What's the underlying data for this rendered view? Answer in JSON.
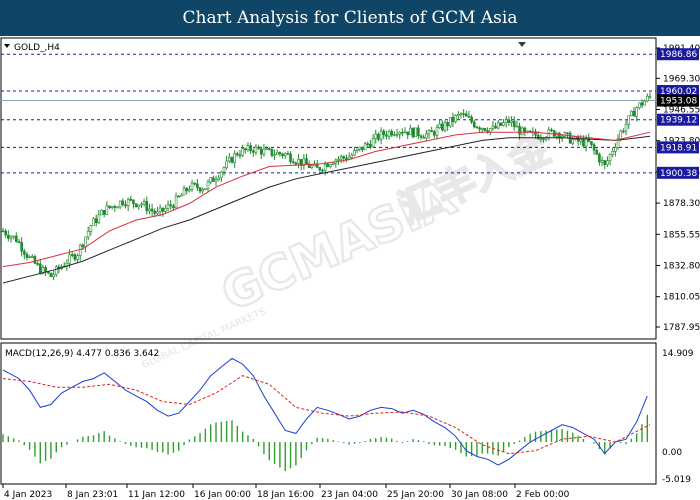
{
  "header": {
    "title": "Chart Analysis for Clients of GCM Asia"
  },
  "symbol": {
    "label": "GOLD_,H4"
  },
  "macd": {
    "label": "MACD(12,26,9) 4.477 0.836 3.642",
    "axis_top": "14.909",
    "axis_zero": "0.00",
    "axis_bottom": "-5.019"
  },
  "watermark": {
    "brand": "GCMASIA",
    "chinese": "汇丰入金",
    "tagline": "GLOBAL CAPITAL MARKETS"
  },
  "colors": {
    "header_bg": "#0f4667",
    "candle": "#1f8a2f",
    "ma_fast": "#d9313d",
    "ma_slow": "#222222",
    "level": "#1a1aa0",
    "current_price": "#8aa4b8",
    "macd_line": "#1a3fd6",
    "signal_line": "#e0201a",
    "histogram": "#2e9e2e"
  },
  "chart_data": {
    "type": "candlestick",
    "symbol": "GOLD_",
    "timeframe": "H4",
    "ylim": [
      1787.95,
      1991.4
    ],
    "y_ticks": [
      1991.4,
      1969.3,
      1946.55,
      1923.8,
      1901.05,
      1878.3,
      1855.55,
      1832.8,
      1810.05,
      1787.95
    ],
    "x_ticks": [
      "4 Jan 2023",
      "8 Jan 23:01",
      "11 Jan 12:00",
      "16 Jan 00:00",
      "18 Jan 16:00",
      "23 Jan 04:00",
      "25 Jan 20:00",
      "30 Jan 08:00",
      "2 Feb 00:00"
    ],
    "levels": [
      {
        "price": 1986.86,
        "label": "1986.86",
        "style": "dashed"
      },
      {
        "price": 1960.02,
        "label": "1960.02",
        "style": "dashed"
      },
      {
        "price": 1939.12,
        "label": "1939.12",
        "style": "dashed"
      },
      {
        "price": 1918.91,
        "label": "1918.91",
        "style": "dashed"
      },
      {
        "price": 1900.38,
        "label": "1900.38",
        "style": "dashed"
      }
    ],
    "current_price": {
      "price": 1953.08,
      "label": "1953.08"
    },
    "close_path": [
      [
        0,
        1858
      ],
      [
        5,
        1852
      ],
      [
        10,
        1838
      ],
      [
        14,
        1830
      ],
      [
        18,
        1825
      ],
      [
        24,
        1836
      ],
      [
        28,
        1842
      ],
      [
        33,
        1862
      ],
      [
        38,
        1873
      ],
      [
        45,
        1880
      ],
      [
        52,
        1878
      ],
      [
        58,
        1870
      ],
      [
        64,
        1878
      ],
      [
        70,
        1890
      ],
      [
        76,
        1890
      ],
      [
        82,
        1902
      ],
      [
        88,
        1915
      ],
      [
        94,
        1918
      ],
      [
        100,
        1915
      ],
      [
        106,
        1914
      ],
      [
        112,
        1908
      ],
      [
        118,
        1903
      ],
      [
        124,
        1910
      ],
      [
        130,
        1912
      ],
      [
        136,
        1920
      ],
      [
        142,
        1928
      ],
      [
        148,
        1932
      ],
      [
        154,
        1930
      ],
      [
        160,
        1928
      ],
      [
        166,
        1935
      ],
      [
        172,
        1943
      ],
      [
        178,
        1935
      ],
      [
        184,
        1932
      ],
      [
        190,
        1938
      ],
      [
        196,
        1928
      ],
      [
        202,
        1928
      ],
      [
        208,
        1930
      ],
      [
        214,
        1924
      ],
      [
        220,
        1922
      ],
      [
        226,
        1905
      ],
      [
        232,
        1930
      ],
      [
        238,
        1948
      ],
      [
        243,
        1956
      ]
    ],
    "ma_fast": [
      [
        0,
        1832
      ],
      [
        10,
        1835
      ],
      [
        20,
        1840
      ],
      [
        30,
        1845
      ],
      [
        40,
        1858
      ],
      [
        50,
        1866
      ],
      [
        60,
        1870
      ],
      [
        70,
        1878
      ],
      [
        80,
        1890
      ],
      [
        90,
        1898
      ],
      [
        100,
        1905
      ],
      [
        110,
        1906
      ],
      [
        120,
        1907
      ],
      [
        130,
        1910
      ],
      [
        140,
        1916
      ],
      [
        150,
        1920
      ],
      [
        160,
        1924
      ],
      [
        170,
        1928
      ],
      [
        180,
        1930
      ],
      [
        190,
        1930
      ],
      [
        200,
        1930
      ],
      [
        210,
        1928
      ],
      [
        220,
        1926
      ],
      [
        230,
        1924
      ],
      [
        243,
        1930
      ]
    ],
    "ma_slow": [
      [
        0,
        1820
      ],
      [
        10,
        1825
      ],
      [
        20,
        1830
      ],
      [
        30,
        1836
      ],
      [
        40,
        1844
      ],
      [
        50,
        1852
      ],
      [
        60,
        1860
      ],
      [
        70,
        1866
      ],
      [
        80,
        1874
      ],
      [
        90,
        1882
      ],
      [
        100,
        1890
      ],
      [
        110,
        1896
      ],
      [
        120,
        1900
      ],
      [
        130,
        1904
      ],
      [
        140,
        1908
      ],
      [
        150,
        1912
      ],
      [
        160,
        1916
      ],
      [
        170,
        1920
      ],
      [
        180,
        1924
      ],
      [
        190,
        1926
      ],
      [
        200,
        1926
      ],
      [
        210,
        1926
      ],
      [
        220,
        1925
      ],
      [
        230,
        1924
      ],
      [
        243,
        1927
      ]
    ],
    "macd": {
      "ylim": [
        -5.019,
        14.909
      ],
      "macd_line": [
        [
          0,
          12.5
        ],
        [
          6,
          11
        ],
        [
          10,
          9
        ],
        [
          14,
          6
        ],
        [
          18,
          6.5
        ],
        [
          22,
          8.5
        ],
        [
          26,
          9.5
        ],
        [
          30,
          10.5
        ],
        [
          34,
          11
        ],
        [
          38,
          12
        ],
        [
          42,
          10.5
        ],
        [
          46,
          9
        ],
        [
          50,
          8
        ],
        [
          54,
          7
        ],
        [
          58,
          5.5
        ],
        [
          62,
          4.5
        ],
        [
          66,
          5
        ],
        [
          70,
          7
        ],
        [
          74,
          9
        ],
        [
          78,
          11.5
        ],
        [
          82,
          13
        ],
        [
          86,
          14.5
        ],
        [
          90,
          13.5
        ],
        [
          94,
          11.5
        ],
        [
          98,
          8
        ],
        [
          102,
          5
        ],
        [
          106,
          2
        ],
        [
          110,
          1.5
        ],
        [
          114,
          4
        ],
        [
          118,
          6
        ],
        [
          122,
          5.5
        ],
        [
          126,
          4.8
        ],
        [
          130,
          4
        ],
        [
          134,
          4.5
        ],
        [
          138,
          5.5
        ],
        [
          142,
          6
        ],
        [
          146,
          5.8
        ],
        [
          150,
          5
        ],
        [
          154,
          5.5
        ],
        [
          158,
          4.8
        ],
        [
          162,
          3.5
        ],
        [
          166,
          2.5
        ],
        [
          170,
          1
        ],
        [
          174,
          -1.5
        ],
        [
          178,
          -2.5
        ],
        [
          182,
          -3
        ],
        [
          186,
          -4
        ],
        [
          190,
          -3
        ],
        [
          194,
          -1.5
        ],
        [
          198,
          0
        ],
        [
          202,
          1
        ],
        [
          206,
          2
        ],
        [
          210,
          3
        ],
        [
          214,
          2.5
        ],
        [
          218,
          1.5
        ],
        [
          222,
          0.5
        ],
        [
          226,
          -2
        ],
        [
          230,
          0
        ],
        [
          234,
          0.5
        ],
        [
          238,
          3.5
        ],
        [
          242,
          8
        ]
      ],
      "signal_line": [
        [
          0,
          11
        ],
        [
          10,
          10.5
        ],
        [
          20,
          9.5
        ],
        [
          30,
          9.5
        ],
        [
          40,
          10
        ],
        [
          50,
          9
        ],
        [
          60,
          7
        ],
        [
          70,
          6.5
        ],
        [
          80,
          8.5
        ],
        [
          90,
          11.5
        ],
        [
          100,
          10
        ],
        [
          110,
          6
        ],
        [
          120,
          5
        ],
        [
          130,
          4.5
        ],
        [
          140,
          5
        ],
        [
          150,
          5.2
        ],
        [
          160,
          4.5
        ],
        [
          170,
          2.5
        ],
        [
          180,
          -0.5
        ],
        [
          190,
          -2
        ],
        [
          200,
          -1.5
        ],
        [
          210,
          0.5
        ],
        [
          220,
          1
        ],
        [
          230,
          0
        ],
        [
          243,
          3
        ]
      ],
      "histogram_note": "green bars around zero"
    }
  }
}
